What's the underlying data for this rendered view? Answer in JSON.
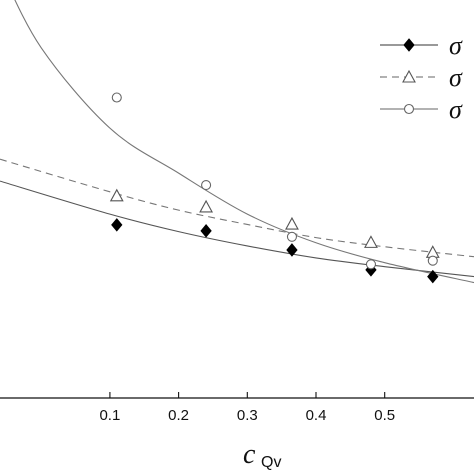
{
  "chart_data": {
    "type": "scatter",
    "xlabel_main": "c",
    "xlabel_sub": "Qv",
    "xlim": [
      -0.06,
      0.63
    ],
    "ylim": [
      0,
      1
    ],
    "x_ticks": [
      "0.1",
      "0.2",
      "0.3",
      "0.4",
      "0.5"
    ],
    "x_tick_values": [
      0.1,
      0.2,
      0.3,
      0.4,
      0.5
    ],
    "legend_position": "top-right",
    "series": [
      {
        "legend_label": "σ",
        "marker": "diamond-filled",
        "line_style": "solid",
        "color": "#000000",
        "points": {
          "x": [
            0.11,
            0.24,
            0.365,
            0.48,
            0.57
          ],
          "y": [
            0.435,
            0.42,
            0.372,
            0.322,
            0.305
          ]
        },
        "fit_curve": {
          "x": [
            -0.06,
            0.1,
            0.2,
            0.3,
            0.4,
            0.5,
            0.63
          ],
          "y": [
            0.545,
            0.462,
            0.418,
            0.382,
            0.352,
            0.33,
            0.305
          ]
        }
      },
      {
        "legend_label": "σ",
        "marker": "triangle-open",
        "line_style": "dashed",
        "color": "#555555",
        "points": {
          "x": [
            0.11,
            0.24,
            0.365,
            0.48,
            0.57
          ],
          "y": [
            0.508,
            0.48,
            0.437,
            0.391,
            0.366
          ]
        },
        "fit_curve": {
          "x": [
            -0.06,
            0.1,
            0.2,
            0.3,
            0.4,
            0.5,
            0.63
          ],
          "y": [
            0.6,
            0.518,
            0.472,
            0.436,
            0.403,
            0.38,
            0.355
          ]
        }
      },
      {
        "legend_label": "σ",
        "marker": "circle-open",
        "line_style": "solid",
        "color": "#666666",
        "points": {
          "x": [
            0.11,
            0.24,
            0.365,
            0.48,
            0.57
          ],
          "y": [
            0.755,
            0.535,
            0.405,
            0.336,
            0.345
          ]
        },
        "fit_curve": {
          "x": [
            -0.06,
            0.0,
            0.1,
            0.2,
            0.3,
            0.4,
            0.5,
            0.63
          ],
          "y": [
            1.08,
            0.88,
            0.678,
            0.565,
            0.462,
            0.39,
            0.34,
            0.29
          ]
        }
      }
    ]
  }
}
